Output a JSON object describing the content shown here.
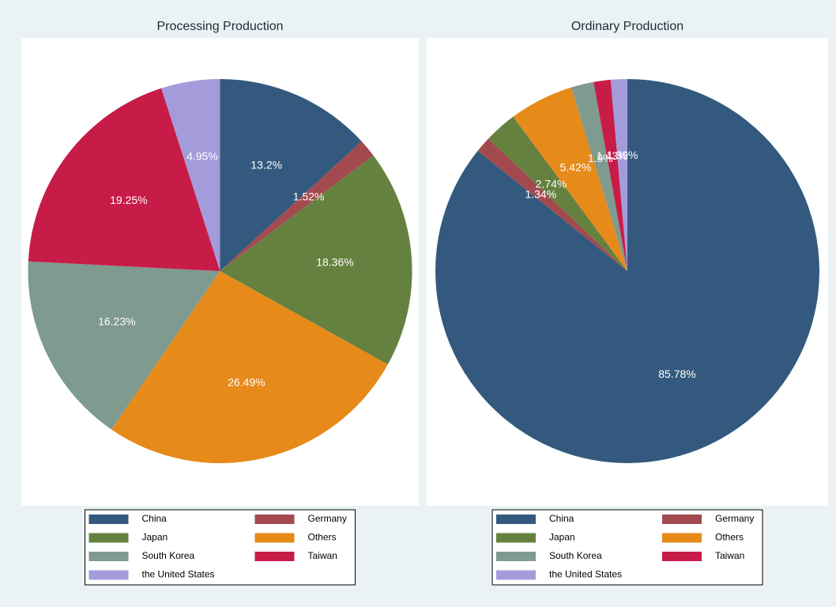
{
  "chart_data": [
    {
      "type": "pie",
      "title": "Processing Production",
      "categories": [
        "China",
        "Germany",
        "Japan",
        "Others",
        "South Korea",
        "Taiwan",
        "the United States"
      ],
      "values": [
        13.2,
        1.52,
        18.36,
        26.49,
        16.23,
        19.25,
        4.95
      ],
      "value_labels": [
        "13.2%",
        "1.52%",
        "18.36%",
        "26.49%",
        "16.23%",
        "19.25%",
        "4.95%"
      ],
      "colors": [
        "#335a7e",
        "#a34a4f",
        "#658140",
        "#e68a1a",
        "#7f9a8f",
        "#c81c48",
        "#a49bdb"
      ]
    },
    {
      "type": "pie",
      "title": "Ordinary Production",
      "categories": [
        "China",
        "Germany",
        "Japan",
        "Others",
        "South Korea",
        "Taiwan",
        "the United States"
      ],
      "values": [
        85.78,
        1.34,
        2.74,
        5.42,
        1.9,
        1.43,
        1.39
      ],
      "value_labels": [
        "85.78%",
        "1.34%",
        "2.74%",
        "5.42%",
        "1.9%",
        "1.43%",
        "1.39%"
      ],
      "colors": [
        "#335a7e",
        "#a34a4f",
        "#658140",
        "#e68a1a",
        "#7f9a8f",
        "#c81c48",
        "#a49bdb"
      ]
    }
  ]
}
